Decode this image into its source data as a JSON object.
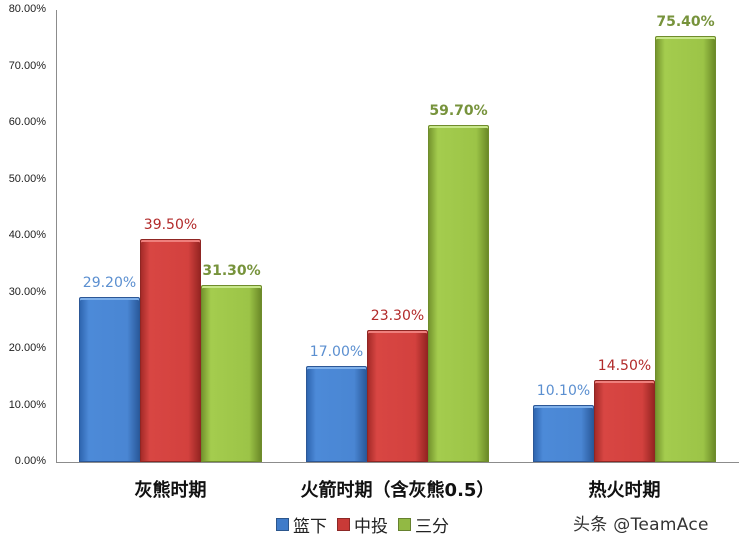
{
  "chart_data": {
    "type": "bar",
    "title": "",
    "xlabel": "",
    "ylabel": "",
    "ylim": [
      0,
      80
    ],
    "yticks": [
      "0.00%",
      "10.00%",
      "20.00%",
      "30.00%",
      "40.00%",
      "50.00%",
      "60.00%",
      "70.00%",
      "80.00%"
    ],
    "grid": false,
    "legend_position": "bottom",
    "categories": [
      "灰熊时期",
      "火箭时期（含灰熊0.5）",
      "热火时期"
    ],
    "series": [
      {
        "name": "篮下",
        "color": "#4a86d3",
        "values": [
          29.2,
          17.0,
          10.1
        ],
        "labels": [
          "29.20%",
          "17.00%",
          "10.10%"
        ]
      },
      {
        "name": "中投",
        "color": "#d3413e",
        "values": [
          39.5,
          23.3,
          14.5
        ],
        "labels": [
          "39.50%",
          "23.30%",
          "14.50%"
        ]
      },
      {
        "name": "三分",
        "color": "#9cc447",
        "values": [
          31.3,
          59.7,
          75.4
        ],
        "labels": [
          "31.30%",
          "59.70%",
          "75.40%"
        ]
      }
    ]
  },
  "legend": [
    {
      "label": "篮下",
      "color": "#4a86d3"
    },
    {
      "label": "中投",
      "color": "#d3413e"
    },
    {
      "label": "三分",
      "color": "#9cc447"
    }
  ],
  "watermark": "头条 @TeamAce"
}
